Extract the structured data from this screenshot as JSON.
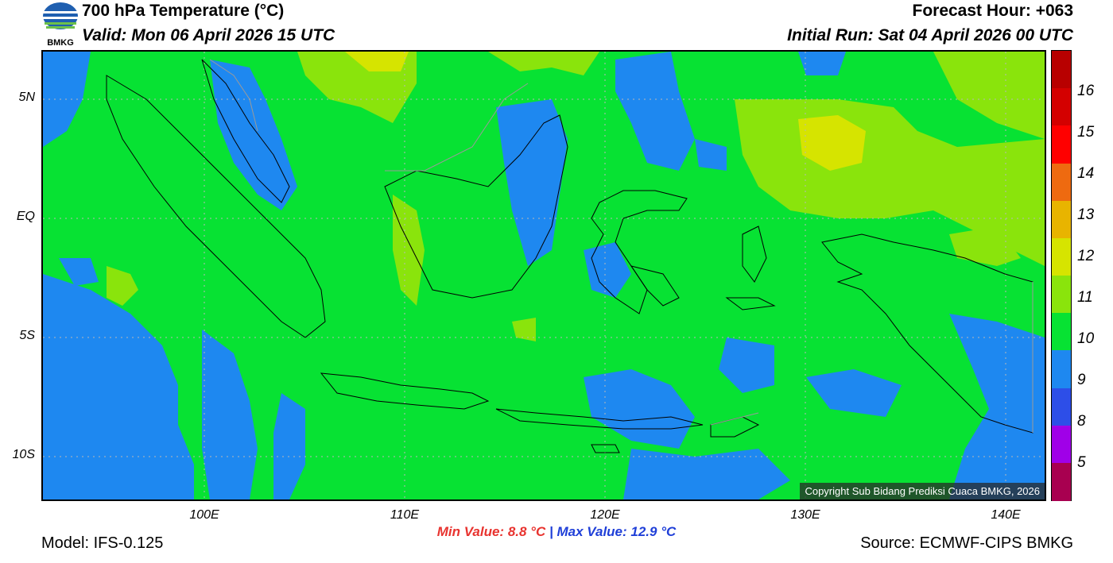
{
  "header": {
    "title": "700 hPa Temperature (°C)",
    "valid": "Valid: Mon 06 April 2026 15 UTC",
    "forecast_hour": "Forecast Hour: +063",
    "initial_run": "Initial Run: Sat 04 April 2026 00 UTC"
  },
  "logo": {
    "text": "BMKG"
  },
  "map": {
    "lat_labels": [
      "5N",
      "EQ",
      "5S",
      "10S"
    ],
    "lon_labels": [
      "100E",
      "110E",
      "120E",
      "130E",
      "140E"
    ],
    "region": "Indonesia",
    "copyright": "Copyright Sub Bidang Prediksi Cuaca BMKG, 2026"
  },
  "colorbar": {
    "labels": [
      "16",
      "15",
      "14",
      "13",
      "12",
      "11",
      "10",
      "9",
      "8",
      "5"
    ],
    "colors": [
      "#b80000",
      "#d40000",
      "#ff0000",
      "#ee6a10",
      "#e8b400",
      "#d6e400",
      "#8ae40c",
      "#07e233",
      "#1e88f0",
      "#2d4ee8",
      "#a000e8",
      "#a80050"
    ]
  },
  "stats": {
    "min": "Min Value: 8.8 °C",
    "separator": "|",
    "max": "Max Value: 12.9 °C"
  },
  "footer": {
    "model": "Model: IFS-0.125",
    "source": "Source: ECMWF-CIPS BMKG"
  }
}
